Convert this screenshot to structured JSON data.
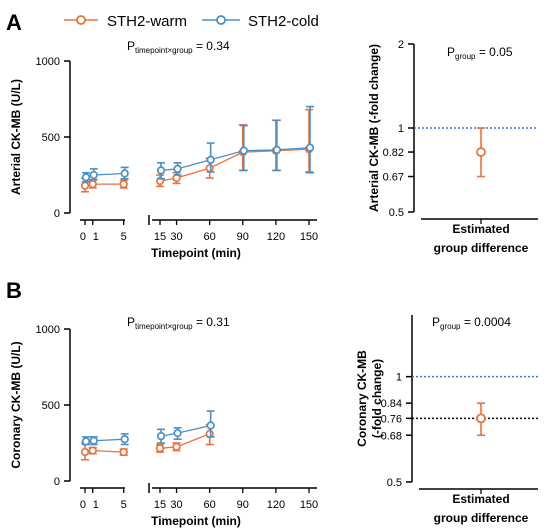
{
  "colors": {
    "warm": "#E8743B",
    "cold": "#4A90C8",
    "ref_line": "#3C78D8"
  },
  "legend": {
    "warm": "STH2-warm",
    "cold": "STH2-cold"
  },
  "chart_data": [
    {
      "panel_label": "A",
      "type": "line",
      "title": "",
      "xlabel": "Timepoint (min)",
      "ylabel": "Arterial CK-MB (U/L)",
      "ylim": [
        0,
        1000
      ],
      "yticks": [
        "0",
        "500",
        "1000"
      ],
      "x_segments": [
        [
          0,
          5
        ],
        [
          15,
          150
        ]
      ],
      "xticks": [
        "0",
        "1",
        "5",
        "15",
        "30",
        "60",
        "90",
        "120",
        "150"
      ],
      "x": [
        0,
        1,
        5,
        15,
        30,
        60,
        90,
        120,
        150
      ],
      "p_annotation": {
        "label": "P",
        "sub": "timepoint×group",
        "value": "= 0.34"
      },
      "series": [
        {
          "name": "STH2-warm",
          "x": [
            0,
            1,
            5,
            15,
            30,
            60,
            90,
            120,
            150
          ],
          "y": [
            180,
            190,
            190,
            210,
            230,
            295,
            400,
            410,
            420
          ],
          "err_low": [
            140,
            165,
            165,
            175,
            195,
            230,
            280,
            280,
            270
          ],
          "err_high": [
            230,
            215,
            215,
            250,
            265,
            360,
            580,
            610,
            680
          ]
        },
        {
          "name": "STH2-cold",
          "x": [
            0,
            1,
            5,
            15,
            30,
            60,
            90,
            120,
            150
          ],
          "y": [
            235,
            250,
            260,
            280,
            290,
            350,
            410,
            415,
            430
          ],
          "err_low": [
            205,
            220,
            225,
            225,
            250,
            270,
            280,
            280,
            265
          ],
          "err_high": [
            265,
            290,
            300,
            330,
            330,
            460,
            575,
            610,
            700
          ]
        }
      ]
    },
    {
      "panel_label": "",
      "type": "scatter",
      "xlabel_lines": [
        "Estimated",
        "group difference"
      ],
      "ylabel": "Arterial CK-MB (-fold change)",
      "yscale": "log",
      "ylim": [
        0.5,
        2
      ],
      "yticks": [
        0.5,
        0.67,
        0.82,
        1,
        2
      ],
      "yticklabels": [
        "0.5",
        "0.67",
        "0.82",
        "1",
        "2"
      ],
      "reference_line": 1,
      "p_annotation": {
        "label": "P",
        "sub": "group",
        "value": "= 0.05"
      },
      "estimate": 0.82,
      "ci_low": 0.67,
      "ci_high": 1.0
    },
    {
      "panel_label": "B",
      "type": "line",
      "title": "",
      "xlabel": "Timepoint (min)",
      "ylabel": "Coronary CK-MB (U/L)",
      "ylim": [
        0,
        1000
      ],
      "yticks": [
        "0",
        "500",
        "1000"
      ],
      "x_segments": [
        [
          0,
          5
        ],
        [
          15,
          150
        ]
      ],
      "xticks": [
        "0",
        "1",
        "5",
        "15",
        "30",
        "60",
        "90",
        "120",
        "150"
      ],
      "x": [
        0,
        1,
        5,
        15,
        30,
        60
      ],
      "p_annotation": {
        "label": "P",
        "sub": "timepoint×group",
        "value": "= 0.31"
      },
      "series": [
        {
          "name": "STH2-warm",
          "x": [
            0,
            1,
            5,
            15,
            30,
            60
          ],
          "y": [
            190,
            200,
            190,
            215,
            225,
            310
          ],
          "err_low": [
            140,
            180,
            170,
            190,
            200,
            240
          ],
          "err_high": [
            250,
            220,
            210,
            240,
            250,
            370
          ]
        },
        {
          "name": "STH2-cold",
          "x": [
            0,
            1,
            5,
            15,
            30,
            60
          ],
          "y": [
            260,
            265,
            275,
            295,
            315,
            365
          ],
          "err_low": [
            240,
            240,
            240,
            250,
            275,
            290
          ],
          "err_high": [
            290,
            290,
            310,
            340,
            350,
            460
          ]
        }
      ]
    },
    {
      "panel_label": "",
      "type": "scatter",
      "xlabel_lines": [
        "Estimated",
        "group difference"
      ],
      "ylabel_lines": [
        "Coronary CK-MB",
        "(-fold change)"
      ],
      "yscale": "log",
      "ylim": [
        0.5,
        1.5
      ],
      "yticks": [
        0.5,
        0.68,
        0.76,
        0.84,
        1
      ],
      "yticklabels": [
        "0.5",
        "0.68",
        "0.76",
        "0.84",
        "1"
      ],
      "reference_line": 1,
      "estimate_line": 0.76,
      "p_annotation": {
        "label": "P",
        "sub": "group",
        "value": "= 0.0004"
      },
      "estimate": 0.76,
      "ci_low": 0.68,
      "ci_high": 0.84
    }
  ]
}
